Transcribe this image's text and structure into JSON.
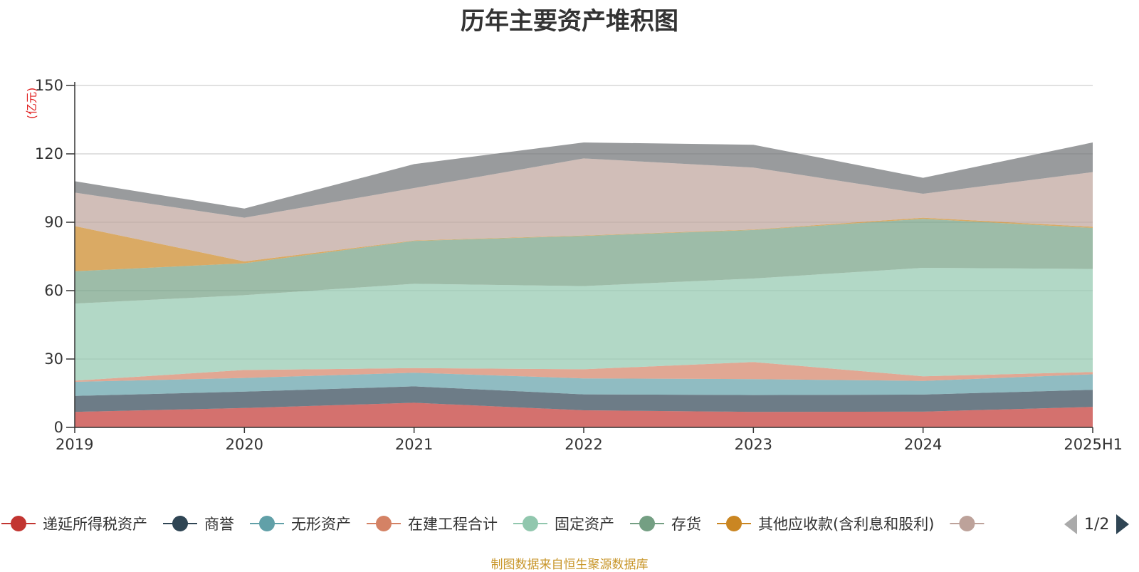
{
  "chart_data": {
    "type": "area",
    "stacked": true,
    "title": "历年主要资产堆积图",
    "unit_label": "(亿元)",
    "categories": [
      "2019",
      "2020",
      "2021",
      "2022",
      "2023",
      "2024",
      "2025H1"
    ],
    "ylim": [
      0,
      150
    ],
    "yticks": [
      "0",
      "30",
      "60",
      "90",
      "120",
      "150"
    ],
    "grid": true,
    "legend_position": "bottom",
    "series": [
      {
        "name": "递延所得税资产",
        "color": "#c23531",
        "values": [
          6.8,
          8.5,
          10.8,
          7.5,
          6.8,
          6.9,
          9.0
        ]
      },
      {
        "name": "商誉",
        "color": "#2f4554",
        "values": [
          7.0,
          7.2,
          7.2,
          7.0,
          7.4,
          7.5,
          7.5
        ]
      },
      {
        "name": "无形资产",
        "color": "#61a0a8",
        "values": [
          6.2,
          6.0,
          6.0,
          7.0,
          7.0,
          6.0,
          6.8
        ]
      },
      {
        "name": "在建工程合计",
        "color": "#d48265",
        "values": [
          0.5,
          3.5,
          2.0,
          4.0,
          7.5,
          2.0,
          1.0
        ]
      },
      {
        "name": "固定资产",
        "color": "#91c7ae",
        "values": [
          33.8,
          32.8,
          37.0,
          36.5,
          36.6,
          47.6,
          45.2
        ]
      },
      {
        "name": "存货",
        "color": "#749f83",
        "values": [
          14.2,
          14.0,
          18.8,
          22.0,
          21.3,
          21.5,
          18.0
        ]
      },
      {
        "name": "其他应收款(含利息和股利)",
        "color": "#ca8622",
        "values": [
          19.8,
          0.8,
          0.2,
          0.2,
          0.2,
          0.5,
          0.5
        ]
      },
      {
        "name": "",
        "color": "#bda29a",
        "values": [
          14.7,
          19.2,
          23.0,
          33.8,
          27.2,
          10.5,
          24.0
        ]
      },
      {
        "name": "",
        "color": "#6e7074",
        "values": [
          5.0,
          4.0,
          10.5,
          7.0,
          10.0,
          7.0,
          13.0
        ]
      }
    ]
  },
  "legend": {
    "pager_text": "1/2",
    "visible_count": 8
  },
  "source_note": "制图数据来自恒生聚源数据库"
}
